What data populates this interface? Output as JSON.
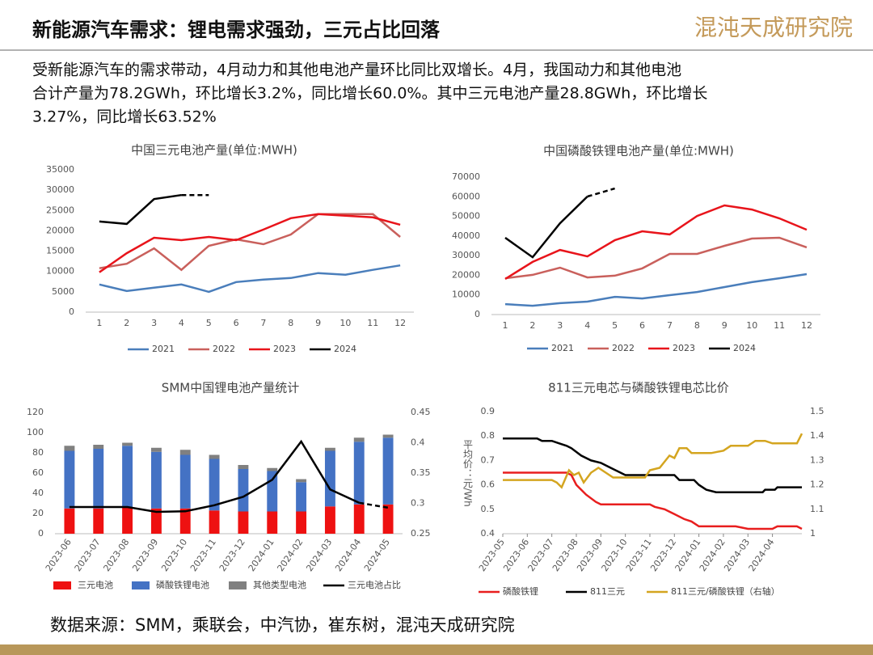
{
  "header": {
    "title": "新能源汽车需求：锂电需求强劲，三元占比回落",
    "logo": "混沌天成研究院"
  },
  "summary": [
    "受新能源汽车的需求带动，4月动力和其他电池产量环比同比双增长。4月，我国动力和其他电池",
    "合计产量为78.2GWh，环比增长3.2%，同比增长60.0%。其中三元电池产量28.8GWh，环比增长",
    "3.27%，同比增长63.52%"
  ],
  "source": "数据来源：SMM，乘联会，中汽协，崔东树，混沌天成研究院",
  "chart_data": [
    {
      "type": "line",
      "title": "中国三元电池产量(单位:MWH)",
      "categories": [
        "1",
        "2",
        "3",
        "4",
        "5",
        "6",
        "7",
        "8",
        "9",
        "10",
        "11",
        "12"
      ],
      "ylim": [
        0,
        35000
      ],
      "yticks": [
        0,
        5000,
        10000,
        15000,
        20000,
        25000,
        30000,
        35000
      ],
      "grid": false,
      "series": [
        {
          "name": "2021",
          "color": "#4a7ebb",
          "values": [
            6800,
            5200,
            6000,
            6800,
            5000,
            7400,
            8000,
            8400,
            9600,
            9200,
            10400,
            11500
          ]
        },
        {
          "name": "2022",
          "color": "#c9605c",
          "values": [
            10800,
            11900,
            15700,
            10400,
            16300,
            17900,
            16700,
            19100,
            24100,
            24100,
            24100,
            18500
          ]
        },
        {
          "name": "2023",
          "color": "#e8141b",
          "values": [
            9800,
            14500,
            18300,
            17700,
            18500,
            17700,
            20300,
            23100,
            24100,
            23700,
            23300,
            21500
          ]
        },
        {
          "name": "2024",
          "color": "#000000",
          "dashed_from": 3,
          "values": [
            22300,
            21700,
            27800,
            28800,
            28800,
            null,
            null,
            null,
            null,
            null,
            null,
            null
          ]
        }
      ]
    },
    {
      "type": "line",
      "title": "中国磷酸铁锂电池产量(单位:MWH)",
      "categories": [
        "1",
        "2",
        "3",
        "4",
        "5",
        "6",
        "7",
        "8",
        "9",
        "10",
        "11",
        "12"
      ],
      "ylim": [
        0,
        70000
      ],
      "yticks": [
        0,
        10000,
        20000,
        30000,
        40000,
        50000,
        60000,
        70000
      ],
      "grid": false,
      "series": [
        {
          "name": "2021",
          "color": "#4a7ebb",
          "values": [
            5300,
            4500,
            5800,
            6600,
            9000,
            8200,
            9900,
            11500,
            14000,
            16500,
            18500,
            20600
          ]
        },
        {
          "name": "2022",
          "color": "#c9605c",
          "values": [
            18500,
            20200,
            23900,
            18900,
            19800,
            23500,
            30900,
            30900,
            35000,
            38700,
            39100,
            34200
          ]
        },
        {
          "name": "2023",
          "color": "#e8141b",
          "values": [
            18100,
            26800,
            32900,
            29600,
            37900,
            42400,
            40800,
            50200,
            55600,
            53500,
            49000,
            43200
          ]
        },
        {
          "name": "2024",
          "color": "#000000",
          "dashed_from": 3,
          "values": [
            39100,
            29200,
            46500,
            60100,
            64200,
            null,
            null,
            null,
            null,
            null,
            null,
            null
          ]
        }
      ]
    },
    {
      "type": "bar",
      "stacked": true,
      "title": "SMM中国锂电池产量统计",
      "categories": [
        "2023-06",
        "2023-07",
        "2023-08",
        "2023-09",
        "2023-10",
        "2023-11",
        "2023-12",
        "2024-01",
        "2024-02",
        "2024-03",
        "2024-04",
        "2024-05"
      ],
      "ylim": [
        0,
        120
      ],
      "yticks": [
        0,
        20,
        40,
        60,
        80,
        100,
        120
      ],
      "y2lim": [
        0.25,
        0.45
      ],
      "y2ticks": [
        0.25,
        0.3,
        0.35,
        0.4,
        0.45
      ],
      "grid": false,
      "series": [
        {
          "name": "三元电池",
          "color": "#ee1111",
          "values": [
            25,
            25,
            26,
            25,
            25,
            23,
            22,
            22,
            22,
            27,
            29,
            29
          ]
        },
        {
          "name": "磷酸铁锂电池",
          "color": "#4472c4",
          "values": [
            57,
            59,
            61,
            56,
            53,
            51,
            42,
            40,
            29,
            55,
            62,
            66
          ]
        },
        {
          "name": "其他类型电池",
          "color": "#808080",
          "values": [
            5,
            4,
            3,
            4,
            5,
            4,
            4,
            3,
            3,
            3,
            4,
            3
          ]
        },
        {
          "name": "三元电池占比",
          "color": "#000000",
          "type": "line",
          "axis": "y2",
          "dashed_from": 10,
          "values": [
            0.294,
            0.294,
            0.294,
            0.286,
            0.287,
            0.297,
            0.311,
            0.339,
            0.402,
            0.323,
            0.301,
            0.293
          ]
        }
      ]
    },
    {
      "type": "line",
      "title": "811三元电芯与磷酸铁锂电芯比价",
      "ylabel": "平均价：元/Wh",
      "xlim": [
        0,
        12.2
      ],
      "xticks": [
        {
          "value": 0,
          "label": "2023-05"
        },
        {
          "value": 1,
          "label": "2023-06"
        },
        {
          "value": 2,
          "label": "2023-07"
        },
        {
          "value": 3,
          "label": "2023-08"
        },
        {
          "value": 4,
          "label": "2023-09"
        },
        {
          "value": 5,
          "label": "2023-10"
        },
        {
          "value": 6,
          "label": "2023-11"
        },
        {
          "value": 7,
          "label": "2023-12"
        },
        {
          "value": 8,
          "label": "2024-01"
        },
        {
          "value": 9,
          "label": "2024-02"
        },
        {
          "value": 10,
          "label": "2024-03"
        },
        {
          "value": 11,
          "label": "2024-04"
        }
      ],
      "ylim": [
        0.4,
        0.9
      ],
      "yticks": [
        0.4,
        0.5,
        0.6,
        0.7,
        0.8,
        0.9
      ],
      "y2lim": [
        1,
        1.5
      ],
      "y2ticks": [
        1,
        1.1,
        1.2,
        1.3,
        1.4,
        1.5
      ],
      "grid": false,
      "series": [
        {
          "name": "磷酸铁锂",
          "color": "#e81e1e",
          "x": [
            0,
            2.6,
            2.8,
            3.0,
            3.2,
            3.4,
            3.8,
            4.0,
            6.0,
            6.2,
            6.6,
            7.0,
            7.4,
            7.7,
            8.0,
            9.5,
            10.0,
            11.0,
            11.2,
            12.0,
            12.2
          ],
          "values": [
            0.65,
            0.65,
            0.64,
            0.6,
            0.58,
            0.56,
            0.53,
            0.52,
            0.52,
            0.51,
            0.5,
            0.48,
            0.46,
            0.45,
            0.43,
            0.43,
            0.42,
            0.42,
            0.43,
            0.43,
            0.42
          ]
        },
        {
          "name": "811三元",
          "color": "#000000",
          "x": [
            0,
            1.4,
            1.6,
            2.0,
            2.3,
            2.6,
            2.8,
            3.2,
            3.6,
            4.0,
            4.4,
            4.8,
            5.0,
            7.0,
            7.2,
            7.8,
            8.0,
            8.3,
            8.7,
            10.6,
            10.7,
            11.1,
            11.2,
            12.2
          ],
          "values": [
            0.79,
            0.79,
            0.78,
            0.78,
            0.77,
            0.76,
            0.75,
            0.72,
            0.7,
            0.69,
            0.67,
            0.65,
            0.64,
            0.64,
            0.62,
            0.62,
            0.6,
            0.58,
            0.57,
            0.57,
            0.58,
            0.58,
            0.59,
            0.59
          ]
        },
        {
          "name": "811三元/磷酸铁锂（右轴）",
          "color": "#d4a520",
          "axis": "y2",
          "x": [
            0,
            2.0,
            2.2,
            2.4,
            2.7,
            2.9,
            3.1,
            3.3,
            3.6,
            3.9,
            4.2,
            4.5,
            5.8,
            6.0,
            6.4,
            6.8,
            7.0,
            7.2,
            7.5,
            7.7,
            8.5,
            9.0,
            9.3,
            10.0,
            10.3,
            10.7,
            11.0,
            12.0,
            12.2
          ],
          "values": [
            1.22,
            1.22,
            1.21,
            1.19,
            1.26,
            1.24,
            1.25,
            1.21,
            1.25,
            1.27,
            1.25,
            1.23,
            1.23,
            1.26,
            1.27,
            1.32,
            1.31,
            1.35,
            1.35,
            1.33,
            1.33,
            1.34,
            1.36,
            1.36,
            1.38,
            1.38,
            1.37,
            1.37,
            1.41
          ]
        }
      ]
    }
  ]
}
